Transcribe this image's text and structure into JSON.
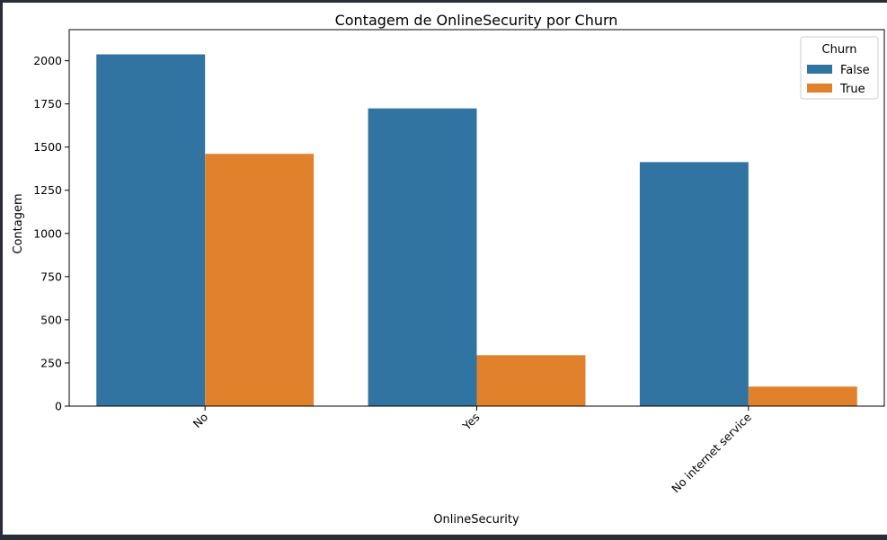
{
  "chart_data": {
    "type": "bar",
    "title": "Contagem de OnlineSecurity por Churn",
    "xlabel": "OnlineSecurity",
    "ylabel": "Contagem",
    "categories": [
      "No",
      "Yes",
      "No internet service"
    ],
    "series": [
      {
        "name": "False",
        "values": [
          2037,
          1724,
          1413
        ],
        "color": "#3274a1"
      },
      {
        "name": "True",
        "values": [
          1461,
          295,
          113
        ],
        "color": "#e1812c"
      }
    ],
    "ylim": [
      0,
      2180
    ],
    "yticks": [
      0,
      250,
      500,
      750,
      1000,
      1250,
      1500,
      1750,
      2000
    ],
    "legend": {
      "title": "Churn",
      "placement": "top-right"
    },
    "grid": false
  }
}
